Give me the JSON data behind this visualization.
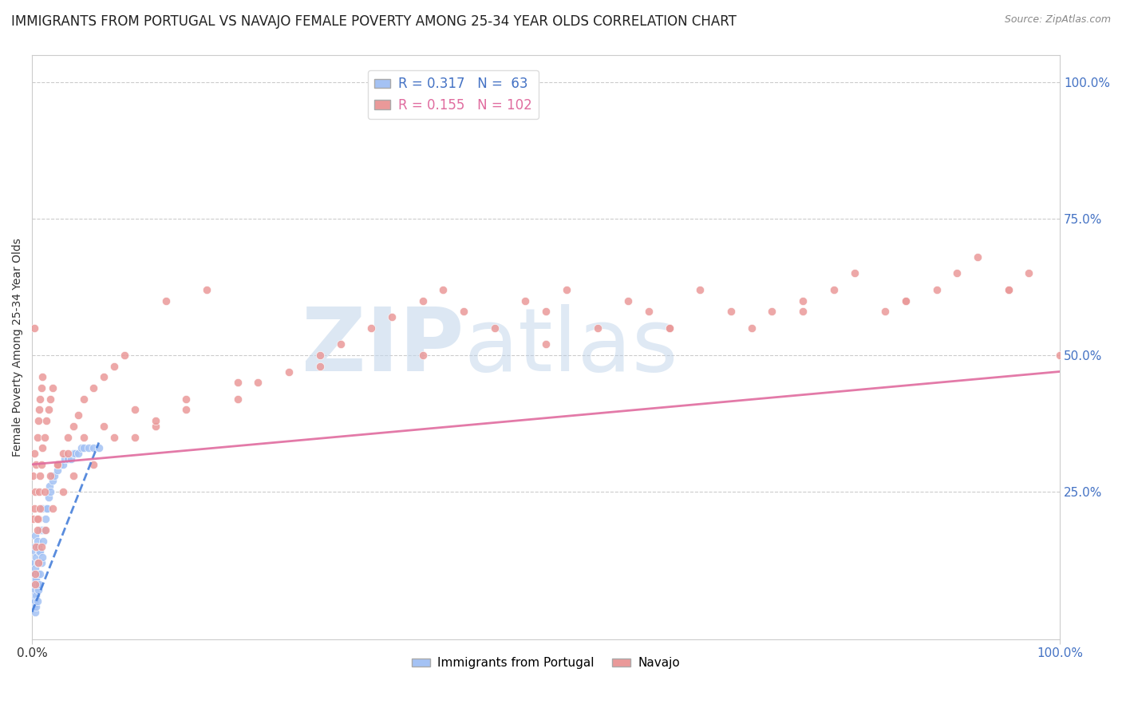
{
  "title": "IMMIGRANTS FROM PORTUGAL VS NAVAJO FEMALE POVERTY AMONG 25-34 YEAR OLDS CORRELATION CHART",
  "source": "Source: ZipAtlas.com",
  "ylabel": "Female Poverty Among 25-34 Year Olds",
  "watermark_zip": "ZIP",
  "watermark_atlas": "atlas",
  "legend": {
    "blue_r": "R = 0.317",
    "blue_n": "N =  63",
    "pink_r": "R = 0.155",
    "pink_n": "N = 102"
  },
  "blue_color": "#a4c2f4",
  "pink_color": "#ea9999",
  "blue_line_color": "#3c78d8",
  "pink_line_color": "#e06c9f",
  "background": "#ffffff",
  "grid_color": "#cccccc",
  "blue_scatter": {
    "x": [
      0.001,
      0.001,
      0.001,
      0.001,
      0.002,
      0.002,
      0.002,
      0.002,
      0.002,
      0.002,
      0.003,
      0.003,
      0.003,
      0.003,
      0.003,
      0.003,
      0.003,
      0.004,
      0.004,
      0.004,
      0.004,
      0.005,
      0.005,
      0.005,
      0.005,
      0.006,
      0.006,
      0.006,
      0.007,
      0.007,
      0.008,
      0.008,
      0.008,
      0.009,
      0.009,
      0.01,
      0.01,
      0.01,
      0.011,
      0.012,
      0.013,
      0.014,
      0.015,
      0.016,
      0.017,
      0.018,
      0.019,
      0.02,
      0.022,
      0.025,
      0.027,
      0.03,
      0.032,
      0.035,
      0.038,
      0.04,
      0.042,
      0.045,
      0.048,
      0.05,
      0.055,
      0.06,
      0.065
    ],
    "y": [
      0.05,
      0.08,
      0.1,
      0.12,
      0.04,
      0.06,
      0.08,
      0.1,
      0.12,
      0.15,
      0.03,
      0.05,
      0.07,
      0.09,
      0.11,
      0.14,
      0.17,
      0.04,
      0.06,
      0.09,
      0.13,
      0.05,
      0.08,
      0.12,
      0.16,
      0.07,
      0.1,
      0.15,
      0.08,
      0.14,
      0.1,
      0.14,
      0.18,
      0.12,
      0.18,
      0.13,
      0.18,
      0.22,
      0.16,
      0.18,
      0.2,
      0.22,
      0.22,
      0.24,
      0.26,
      0.25,
      0.28,
      0.27,
      0.28,
      0.29,
      0.3,
      0.3,
      0.31,
      0.31,
      0.31,
      0.32,
      0.32,
      0.32,
      0.33,
      0.33,
      0.33,
      0.33,
      0.33
    ]
  },
  "pink_scatter": {
    "x": [
      0.001,
      0.001,
      0.002,
      0.002,
      0.003,
      0.003,
      0.004,
      0.004,
      0.005,
      0.005,
      0.006,
      0.006,
      0.007,
      0.007,
      0.008,
      0.008,
      0.009,
      0.009,
      0.01,
      0.01,
      0.012,
      0.014,
      0.016,
      0.018,
      0.02,
      0.025,
      0.03,
      0.035,
      0.04,
      0.045,
      0.05,
      0.06,
      0.07,
      0.08,
      0.09,
      0.1,
      0.12,
      0.13,
      0.15,
      0.17,
      0.2,
      0.22,
      0.25,
      0.28,
      0.3,
      0.33,
      0.35,
      0.38,
      0.4,
      0.42,
      0.45,
      0.48,
      0.5,
      0.52,
      0.55,
      0.58,
      0.6,
      0.62,
      0.65,
      0.68,
      0.7,
      0.72,
      0.75,
      0.78,
      0.8,
      0.83,
      0.85,
      0.88,
      0.9,
      0.92,
      0.95,
      0.97,
      1.0,
      0.002,
      0.005,
      0.008,
      0.012,
      0.018,
      0.025,
      0.035,
      0.05,
      0.07,
      0.1,
      0.15,
      0.2,
      0.28,
      0.38,
      0.5,
      0.62,
      0.75,
      0.85,
      0.95,
      0.003,
      0.006,
      0.009,
      0.013,
      0.02,
      0.03,
      0.04,
      0.06,
      0.08,
      0.12
    ],
    "y": [
      0.2,
      0.28,
      0.22,
      0.32,
      0.1,
      0.25,
      0.15,
      0.3,
      0.18,
      0.35,
      0.2,
      0.38,
      0.25,
      0.4,
      0.28,
      0.42,
      0.3,
      0.44,
      0.33,
      0.46,
      0.35,
      0.38,
      0.4,
      0.42,
      0.44,
      0.3,
      0.32,
      0.35,
      0.37,
      0.39,
      0.42,
      0.44,
      0.46,
      0.48,
      0.5,
      0.35,
      0.37,
      0.6,
      0.4,
      0.62,
      0.42,
      0.45,
      0.47,
      0.5,
      0.52,
      0.55,
      0.57,
      0.6,
      0.62,
      0.58,
      0.55,
      0.6,
      0.58,
      0.62,
      0.55,
      0.6,
      0.58,
      0.55,
      0.62,
      0.58,
      0.55,
      0.58,
      0.6,
      0.62,
      0.65,
      0.58,
      0.6,
      0.62,
      0.65,
      0.68,
      0.62,
      0.65,
      0.5,
      0.55,
      0.2,
      0.22,
      0.25,
      0.28,
      0.3,
      0.32,
      0.35,
      0.37,
      0.4,
      0.42,
      0.45,
      0.48,
      0.5,
      0.52,
      0.55,
      0.58,
      0.6,
      0.62,
      0.08,
      0.12,
      0.15,
      0.18,
      0.22,
      0.25,
      0.28,
      0.3,
      0.35,
      0.38
    ]
  },
  "xlim": [
    0.0,
    1.0
  ],
  "ylim": [
    -0.02,
    1.05
  ],
  "blue_line_x": [
    0.0,
    0.065
  ],
  "blue_line_y": [
    0.03,
    0.34
  ],
  "pink_line_x": [
    0.0,
    1.0
  ],
  "pink_line_y": [
    0.3,
    0.47
  ],
  "right_yticks": [
    0.25,
    0.5,
    0.75,
    1.0
  ],
  "right_yticklabels": [
    "25.0%",
    "50.0%",
    "75.0%",
    "100.0%"
  ],
  "title_fontsize": 12,
  "axis_fontsize": 10,
  "tick_fontsize": 11
}
